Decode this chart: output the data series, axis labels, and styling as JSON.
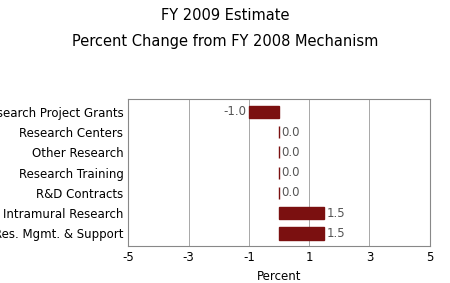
{
  "title_line1": "FY 2009 Estimate",
  "title_line2": "Percent Change from FY 2008 Mechanism",
  "categories": [
    "Res. Mgmt. & Support",
    "Intramural Research",
    "R&D Contracts",
    "Research Training",
    "Other Research",
    "Research Centers",
    "Research Project Grants"
  ],
  "values": [
    1.5,
    1.5,
    0.0,
    0.0,
    0.0,
    0.0,
    -1.0
  ],
  "bar_color": "#7B1010",
  "bar_labels": [
    "1.5",
    "1.5",
    "0.0",
    "0.0",
    "0.0",
    "0.0",
    "-1.0"
  ],
  "xlabel": "Percent",
  "xlim": [
    -5,
    5
  ],
  "xticks": [
    -5,
    -3,
    -1,
    1,
    3,
    5
  ],
  "background_color": "#ffffff",
  "title_fontsize": 10.5,
  "label_fontsize": 8.5,
  "tick_fontsize": 8.5,
  "value_label_fontsize": 8.5
}
